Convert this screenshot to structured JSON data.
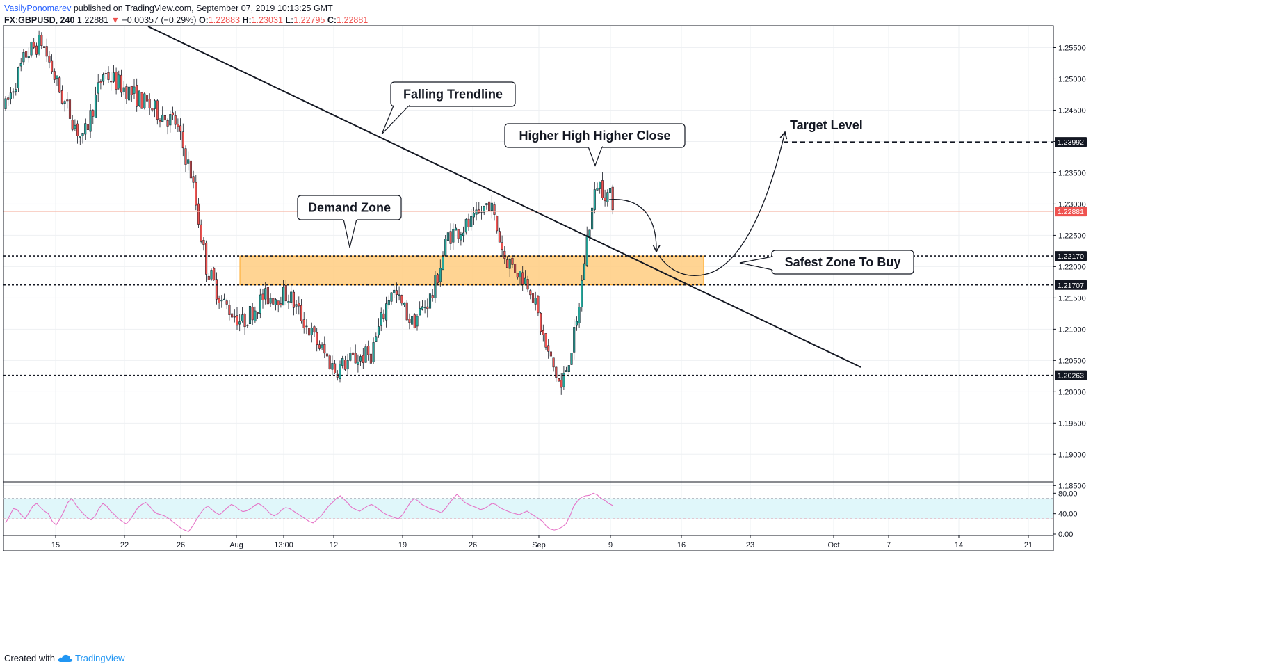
{
  "header": {
    "author": "VasilyPonomarev",
    "published": " published on TradingView.com, September 07, 2019 10:13:25 GMT",
    "symbol": "FX:GBPUSD, 240",
    "last": "1.22881",
    "change": "−0.00357 (−0.29%)",
    "o_label": "O:",
    "o_val": "1.22883",
    "h_label": "H:",
    "h_val": "1.23031",
    "l_label": "L:",
    "l_val": "1.22795",
    "c_label": "C:",
    "c_val": "1.22881"
  },
  "footer": {
    "created_with": "Created with",
    "brand": "TradingView"
  },
  "colors": {
    "up": "#26a69a",
    "down": "#ef5350",
    "zone_fill": "#ffcc80",
    "zone_edge": "#ffa726",
    "rsi_line": "#e573c7",
    "rsi_band": "#e0f7fa",
    "price_line": "#f5b7a6"
  },
  "chart_data": {
    "type": "candlestick",
    "symbol": "GBPUSD",
    "interval": "240",
    "ylim": [
      1.185,
      1.258
    ],
    "y_ticks": [
      "1.25500",
      "1.25000",
      "1.24500",
      "1.24000",
      "1.23500",
      "1.23000",
      "1.22500",
      "1.22000",
      "1.21500",
      "1.21000",
      "1.20500",
      "1.20000",
      "1.19500",
      "1.19000",
      "1.18500"
    ],
    "x_ticks": [
      "15",
      "22",
      "26",
      "Aug",
      "13:00",
      "12",
      "19",
      "26",
      "Sep",
      "9",
      "16",
      "23",
      "Oct",
      "7",
      "14",
      "21"
    ],
    "price_path": [
      {
        "bar": 0,
        "price": 1.2455
      },
      {
        "bar": 8,
        "price": 1.254
      },
      {
        "bar": 14,
        "price": 1.256
      },
      {
        "bar": 22,
        "price": 1.247
      },
      {
        "bar": 30,
        "price": 1.24
      },
      {
        "bar": 38,
        "price": 1.251
      },
      {
        "bar": 48,
        "price": 1.248
      },
      {
        "bar": 58,
        "price": 1.245
      },
      {
        "bar": 66,
        "price": 1.243
      },
      {
        "bar": 72,
        "price": 1.235
      },
      {
        "bar": 78,
        "price": 1.22
      },
      {
        "bar": 84,
        "price": 1.2145
      },
      {
        "bar": 92,
        "price": 1.211
      },
      {
        "bar": 100,
        "price": 1.215
      },
      {
        "bar": 110,
        "price": 1.2155
      },
      {
        "bar": 120,
        "price": 1.2085
      },
      {
        "bar": 128,
        "price": 1.2035
      },
      {
        "bar": 134,
        "price": 1.205
      },
      {
        "bar": 142,
        "price": 1.206
      },
      {
        "bar": 150,
        "price": 1.2165
      },
      {
        "bar": 158,
        "price": 1.211
      },
      {
        "bar": 166,
        "price": 1.2155
      },
      {
        "bar": 172,
        "price": 1.225
      },
      {
        "bar": 182,
        "price": 1.227
      },
      {
        "bar": 188,
        "price": 1.2305
      },
      {
        "bar": 194,
        "price": 1.2215
      },
      {
        "bar": 204,
        "price": 1.217
      },
      {
        "bar": 210,
        "price": 1.207
      },
      {
        "bar": 216,
        "price": 1.2005
      },
      {
        "bar": 222,
        "price": 1.2105
      },
      {
        "bar": 226,
        "price": 1.2245
      },
      {
        "bar": 230,
        "price": 1.2335
      },
      {
        "bar": 236,
        "price": 1.2305
      }
    ],
    "last_price": 1.22881,
    "levels": [
      {
        "price": 1.2217,
        "label": "1.22170"
      },
      {
        "price": 1.21707,
        "label": "1.21707"
      },
      {
        "price": 1.20263,
        "label": "1.20263"
      },
      {
        "price": 1.23992,
        "label": "1.23992"
      }
    ],
    "annotations": [
      "Falling Trendline",
      "Higher High Higher Close",
      "Demand Zone",
      "Safest Zone To Buy",
      "Target Level"
    ],
    "rsi": {
      "y_ticks": [
        "80.00",
        "40.00",
        "0.00"
      ],
      "upper": 70,
      "lower": 30,
      "values": [
        22,
        35,
        50,
        48,
        38,
        30,
        42,
        55,
        60,
        52,
        45,
        40,
        25,
        18,
        30,
        45,
        62,
        70,
        58,
        48,
        40,
        32,
        28,
        35,
        50,
        60,
        55,
        45,
        38,
        30,
        25,
        20,
        28,
        40,
        52,
        58,
        62,
        55,
        45,
        40,
        38,
        35,
        30,
        24,
        18,
        12,
        8,
        5,
        15,
        28,
        40,
        50,
        55,
        48,
        42,
        38,
        45,
        52,
        58,
        55,
        48,
        44,
        46,
        50,
        56,
        60,
        55,
        48,
        40,
        36,
        40,
        48,
        52,
        50,
        45,
        40,
        35,
        30,
        25,
        22,
        28,
        35,
        45,
        55,
        62,
        70,
        75,
        68,
        60,
        52,
        48,
        45,
        50,
        55,
        58,
        54,
        48,
        42,
        38,
        35,
        32,
        30,
        38,
        50,
        62,
        70,
        65,
        58,
        54,
        50,
        48,
        45,
        42,
        50,
        60,
        70,
        78,
        70,
        62,
        58,
        55,
        52,
        48,
        50,
        55,
        60,
        58,
        52,
        48,
        45,
        42,
        40,
        38,
        42,
        45,
        40,
        35,
        30,
        25,
        15,
        10,
        8,
        10,
        14,
        20,
        35,
        55,
        65,
        72,
        75,
        76,
        80,
        77,
        70,
        66,
        60,
        56
      ]
    }
  }
}
